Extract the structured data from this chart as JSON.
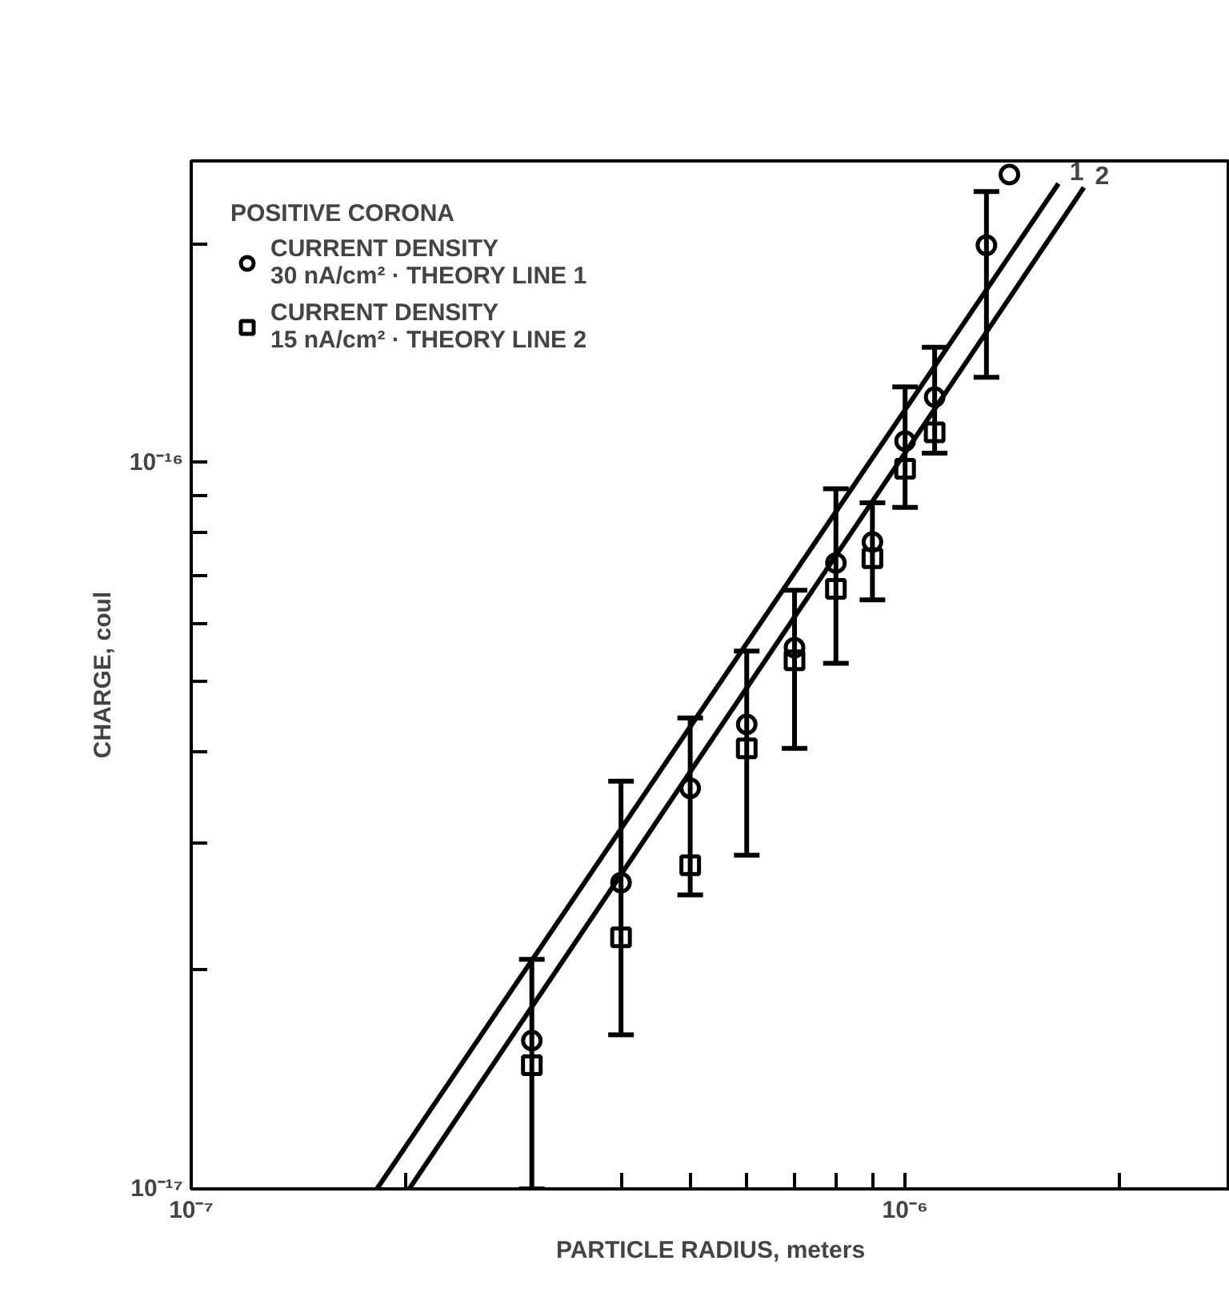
{
  "chart_data": {
    "type": "scatter",
    "xlabel": "PARTICLE RADIUS, meters",
    "ylabel": "CHARGE, coul",
    "legend_title": "POSITIVE CORONA",
    "log": "xy",
    "grid": false,
    "legend": "top left",
    "xlim": [
      1e-07,
      2.85e-06
    ],
    "ylim": [
      1e-17,
      2.6e-16
    ],
    "xticks": [
      {
        "value": 1e-07,
        "label": "10⁻⁷"
      },
      {
        "value": 2e-07,
        "label": null
      },
      {
        "value": 3e-07,
        "label": null
      },
      {
        "value": 4e-07,
        "label": null
      },
      {
        "value": 5e-07,
        "label": null
      },
      {
        "value": 6e-07,
        "label": null
      },
      {
        "value": 7e-07,
        "label": null
      },
      {
        "value": 8e-07,
        "label": null
      },
      {
        "value": 9e-07,
        "label": null
      },
      {
        "value": 1e-06,
        "label": "10⁻⁶"
      },
      {
        "value": 2e-06,
        "label": null
      }
    ],
    "yticks": [
      {
        "value": 1e-17,
        "label": "10⁻¹⁷"
      },
      {
        "value": 2e-17,
        "label": null
      },
      {
        "value": 3e-17,
        "label": null
      },
      {
        "value": 4e-17,
        "label": null
      },
      {
        "value": 5e-17,
        "label": null
      },
      {
        "value": 6e-17,
        "label": null
      },
      {
        "value": 7e-17,
        "label": null
      },
      {
        "value": 8e-17,
        "label": null
      },
      {
        "value": 9e-17,
        "label": null
      },
      {
        "value": 1e-16,
        "label": "10⁻¹⁶"
      },
      {
        "value": 2e-16,
        "label": null
      }
    ],
    "series": [
      {
        "name": "CURRENT DENSITY\n30 nA/cm² · THEORY LINE 1",
        "marker": "circle",
        "color": "#000000",
        "x": [
          3e-07,
          4e-07,
          5e-07,
          6e-07,
          7e-07,
          8e-07,
          9e-07,
          1e-06,
          1.1e-06,
          1.3e-06,
          1.4e-06
        ],
        "values": [
          1.6e-17,
          2.64e-17,
          3.56e-17,
          4.36e-17,
          5.56e-17,
          7.27e-17,
          7.77e-17,
          1.07e-16,
          1.23e-16,
          1.99e-16,
          2.49e-16
        ],
        "errors": [
          [
            1e-17,
            2.07e-17
          ],
          [
            1.63e-17,
            3.64e-17
          ],
          [
            2.54e-17,
            4.45e-17
          ],
          [
            2.88e-17,
            5.5e-17
          ],
          [
            4.04e-17,
            6.67e-17
          ],
          [
            5.29e-17,
            9.2e-17
          ],
          [
            6.47e-17,
            8.8e-17
          ],
          [
            8.67e-17,
            1.27e-16
          ],
          [
            1.03e-16,
            1.44e-16
          ],
          [
            1.31e-16,
            2.36e-16
          ],
          null
        ]
      },
      {
        "name": "CURRENT DENSITY\n15 nA/cm² · THEORY LINE 2",
        "marker": "square",
        "color": "#000000",
        "x": [
          3e-07,
          4e-07,
          5e-07,
          6e-07,
          7e-07,
          8e-07,
          9e-07,
          1e-06,
          1.1e-06
        ],
        "values": [
          1.48e-17,
          2.22e-17,
          2.79e-17,
          4.04e-17,
          5.34e-17,
          6.7e-17,
          7.38e-17,
          9.8e-17,
          1.1e-16
        ]
      },
      {
        "type": "line",
        "line_style": "solid",
        "color": "#000000",
        "x": [
          1.82e-07,
          1.64e-06
        ],
        "values": [
          1e-17,
          2.42e-16
        ]
      },
      {
        "type": "line",
        "line_style": "solid",
        "color": "#000000",
        "x": [
          2.02e-07,
          1.78e-06
        ],
        "values": [
          1e-17,
          2.39e-16
        ]
      }
    ],
    "annotations": [
      {
        "text": "1",
        "x": 1.64e-06,
        "y": 2.42e-16
      },
      {
        "text": "2",
        "x": 1.78e-06,
        "y": 2.39e-16
      }
    ]
  }
}
